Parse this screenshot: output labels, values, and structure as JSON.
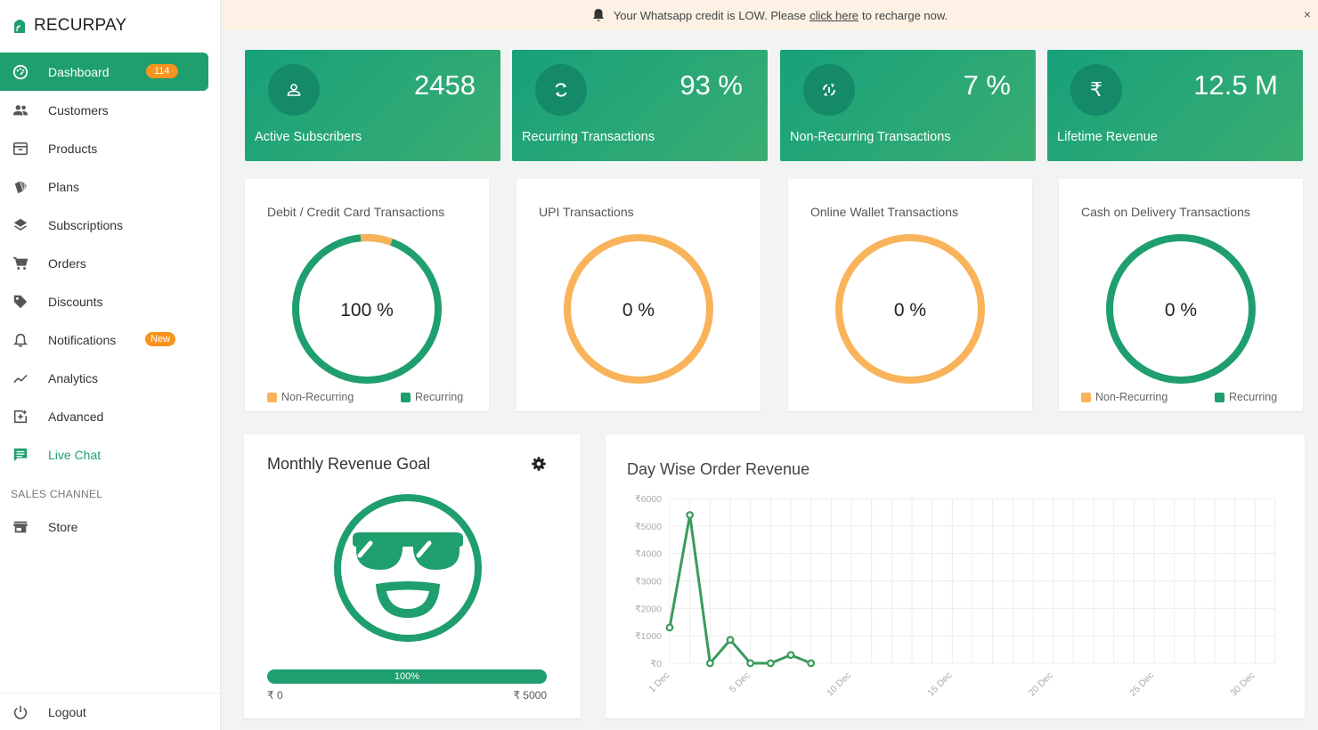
{
  "brand": {
    "name": "RECURPAY"
  },
  "sidebar": {
    "items": [
      {
        "label": "Dashboard",
        "badge": "114"
      },
      {
        "label": "Customers"
      },
      {
        "label": "Products"
      },
      {
        "label": "Plans"
      },
      {
        "label": "Subscriptions"
      },
      {
        "label": "Orders"
      },
      {
        "label": "Discounts"
      },
      {
        "label": "Notifications",
        "badge": "New"
      },
      {
        "label": "Analytics"
      },
      {
        "label": "Advanced"
      },
      {
        "label": "Live Chat"
      }
    ],
    "section_label": "SALES CHANNEL",
    "store_label": "Store",
    "logout_label": "Logout"
  },
  "alert": {
    "prefix": "Your Whatsapp credit is LOW. Please",
    "link": "click here",
    "suffix": "to recharge now.",
    "close": "×"
  },
  "stats": [
    {
      "value": "2458",
      "label": "Active Subscribers",
      "icon": "user-icon"
    },
    {
      "value": "93 %",
      "label": "Recurring Transactions",
      "icon": "refresh-icon"
    },
    {
      "value": "7 %",
      "label": "Non-Recurring Transactions",
      "icon": "sync-off-icon"
    },
    {
      "value": "12.5 M",
      "label": "Lifetime Revenue",
      "icon": "rupee-icon"
    }
  ],
  "donuts": [
    {
      "title": "Debit / Credit Card Transactions",
      "value": "100 %",
      "non_recurring_fraction": 0.07,
      "legend": [
        "Non-Recurring",
        "Recurring"
      ]
    },
    {
      "title": "UPI Transactions",
      "value": "0 %",
      "non_recurring_fraction": 1.0
    },
    {
      "title": "Online Wallet Transactions",
      "value": "0 %",
      "non_recurring_fraction": 1.0
    },
    {
      "title": "Cash on Delivery Transactions",
      "value": "0 %",
      "non_recurring_fraction": 0.0,
      "legend": [
        "Non-Recurring",
        "Recurring"
      ]
    }
  ],
  "colors": {
    "recurring": "#1f9e6e",
    "non_recurring": "#f9b35a",
    "accent": "#1f9e6e",
    "badge": "#f7931e"
  },
  "goal": {
    "title": "Monthly Revenue Goal",
    "progress_label": "100%",
    "progress": 1.0,
    "min_label": "₹ 0",
    "max_label": "₹ 5000"
  },
  "chart_data": {
    "type": "line",
    "title": "Day Wise Order Revenue",
    "x": [
      "1 Dec",
      "2 Dec",
      "3 Dec",
      "4 Dec",
      "5 Dec",
      "6 Dec",
      "7 Dec",
      "8 Dec"
    ],
    "values": [
      1300,
      5400,
      0,
      850,
      0,
      0,
      300,
      0
    ],
    "x_tick_labels": [
      "1 Dec",
      "5 Dec",
      "10 Dec",
      "15 Dec",
      "20 Dec",
      "25 Dec",
      "30 Dec"
    ],
    "y_tick_labels": [
      "₹6000",
      "₹5000",
      "₹4000",
      "₹3000",
      "₹2000",
      "₹1000",
      "₹0"
    ],
    "ylim": [
      0,
      6000
    ],
    "x_days": 31,
    "grid": true,
    "color": "#3a9b5c"
  }
}
